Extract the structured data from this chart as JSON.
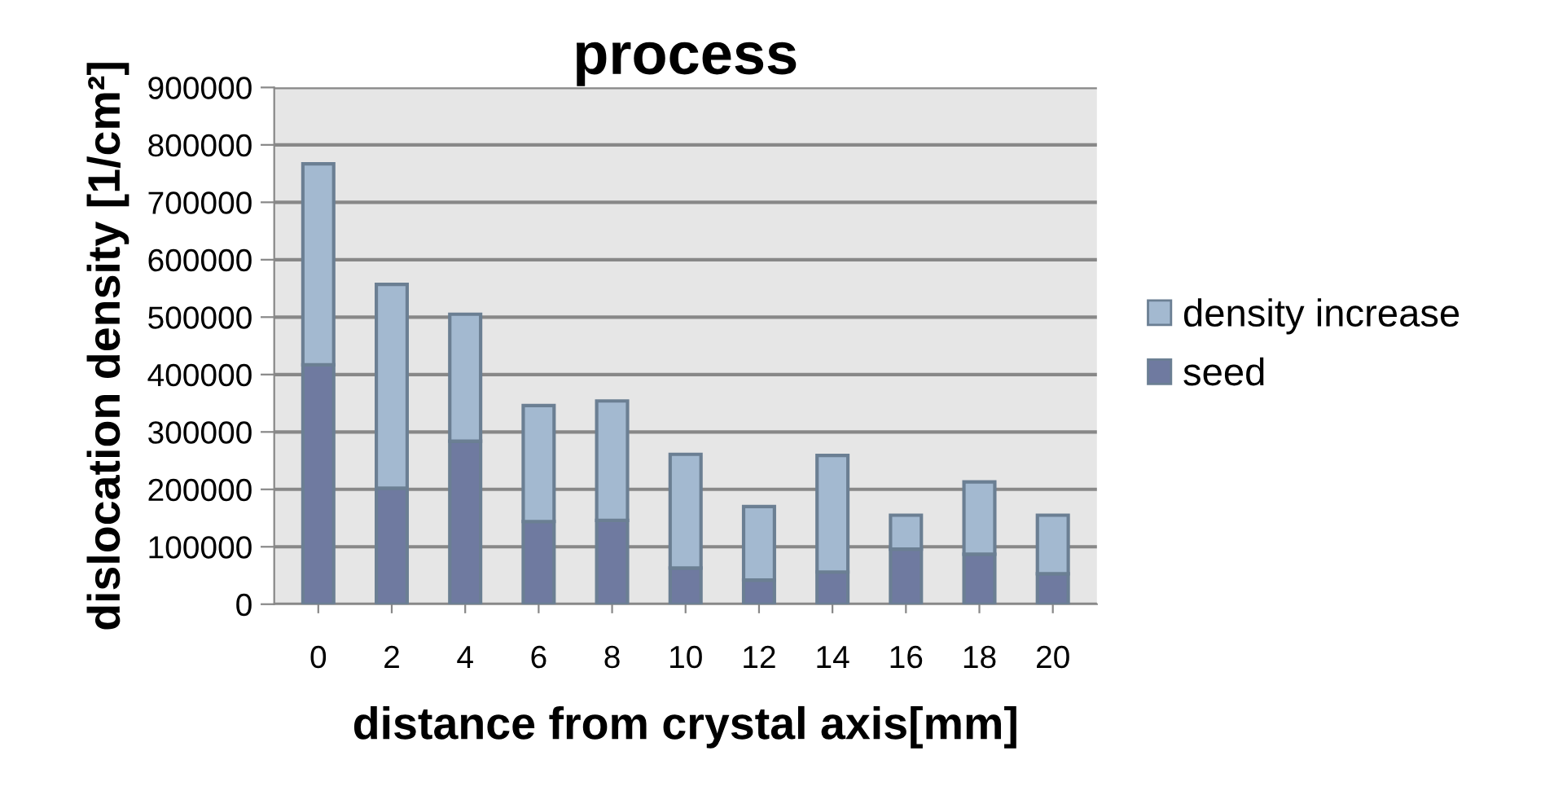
{
  "chart_data": {
    "type": "bar",
    "title": "process",
    "xlabel": "distance from crystal axis[mm]",
    "ylabel": "dislocation density [1/cm²]",
    "categories": [
      "0",
      "2",
      "4",
      "6",
      "8",
      "10",
      "12",
      "14",
      "16",
      "18",
      "20"
    ],
    "stacked": true,
    "series": [
      {
        "name": "seed",
        "color": "#6f7aa0",
        "values": [
          417000,
          202000,
          284000,
          144000,
          146000,
          63000,
          42000,
          56000,
          96000,
          87000,
          53000
        ]
      },
      {
        "name": "density increase",
        "color": "#a3b9d0",
        "values": [
          350000,
          355000,
          221000,
          202000,
          208000,
          198000,
          128000,
          203000,
          59000,
          126000,
          102000
        ]
      }
    ],
    "ylim": [
      0,
      900000
    ],
    "yticks": [
      0,
      100000,
      200000,
      300000,
      400000,
      500000,
      600000,
      700000,
      800000,
      900000
    ],
    "grid": "y",
    "legend": "right"
  }
}
